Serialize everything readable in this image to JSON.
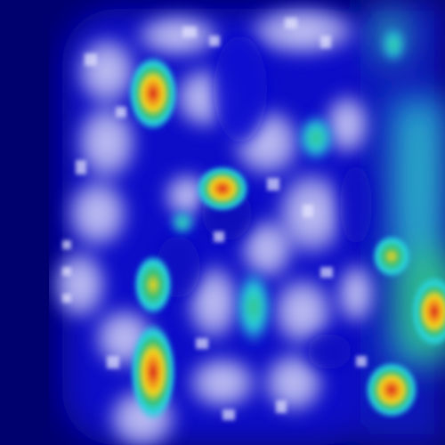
{
  "image": {
    "kind": "saliency-heatmap-overlay",
    "colormap": "jet",
    "description_colors": {
      "background": "#00006e",
      "deep_blue": "#0000c8",
      "lavender_texture": "#b8b8f0",
      "cyan": "#27d4e0",
      "green": "#38c070",
      "yellow": "#f2d41a",
      "orange": "#f08a1e",
      "red": "#d81e1e"
    }
  }
}
